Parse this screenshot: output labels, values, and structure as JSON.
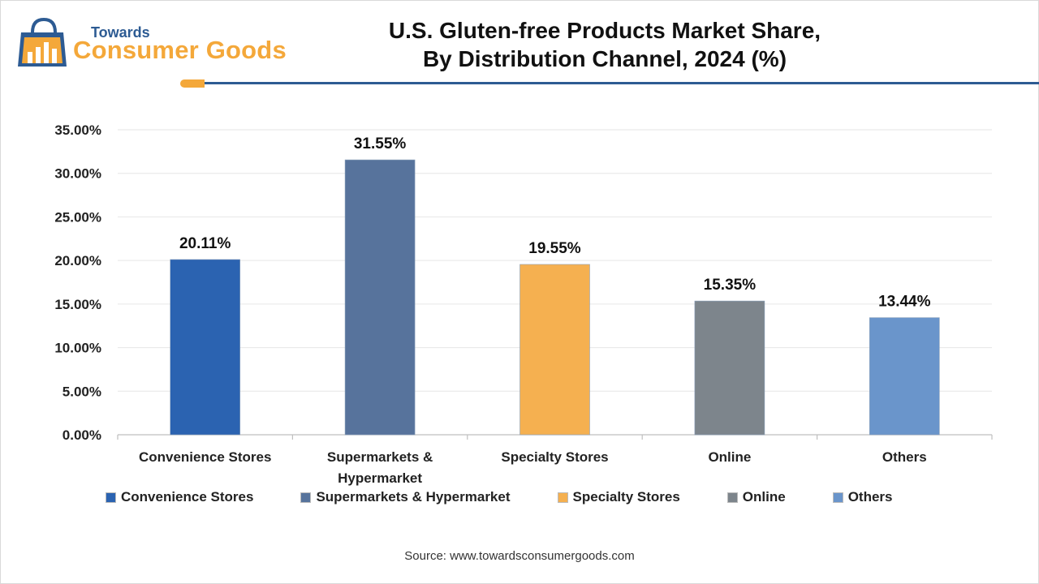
{
  "logo": {
    "line1": "Towards",
    "line2": "Consumer Goods"
  },
  "title_line1": "U.S. Gluten-free Products Market Share,",
  "title_line2": "By Distribution Channel, 2024 (%)",
  "source": "Source: www.towardsconsumergoods.com",
  "colors": {
    "brand_blue": "#2d5b93",
    "brand_orange": "#f4a83a",
    "grid": "#e6e6e6",
    "axis": "#bfbfbf"
  },
  "chart_data": {
    "type": "bar",
    "categories": [
      "Convenience Stores",
      "Supermarkets & Hypermarket",
      "Specialty Stores",
      "Online",
      "Others"
    ],
    "category_tick_labels": [
      [
        "Convenience Stores"
      ],
      [
        "Supermarkets &",
        "Hypermarket"
      ],
      [
        "Specialty Stores"
      ],
      [
        "Online"
      ],
      [
        "Others"
      ]
    ],
    "values": [
      20.11,
      31.55,
      19.55,
      15.35,
      13.44
    ],
    "value_labels": [
      "20.11%",
      "31.55%",
      "19.55%",
      "15.35%",
      "13.44%"
    ],
    "colors": [
      "#2b63b1",
      "#57739c",
      "#f5b050",
      "#7d858c",
      "#6a95cb"
    ],
    "ylim": [
      0,
      35
    ],
    "yticks": [
      0,
      5,
      10,
      15,
      20,
      25,
      30,
      35
    ],
    "ytick_labels": [
      "0.00%",
      "5.00%",
      "10.00%",
      "15.00%",
      "20.00%",
      "25.00%",
      "30.00%",
      "35.00%"
    ],
    "grid": true,
    "legend": {
      "position": "bottom",
      "entries": [
        "Convenience Stores",
        "Supermarkets & Hypermarket",
        "Specialty Stores",
        "Online",
        "Others"
      ]
    }
  }
}
